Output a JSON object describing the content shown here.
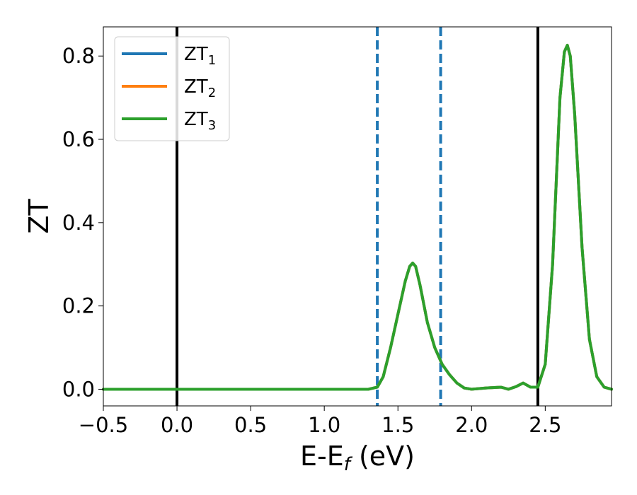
{
  "chart_data": {
    "type": "line",
    "title": "",
    "xlabel": {
      "main": "E-E",
      "sub": "f",
      "suffix": " (eV)"
    },
    "ylabel": "ZT",
    "xlim": [
      -0.5,
      2.95
    ],
    "ylim": [
      -0.04,
      0.87
    ],
    "xticks": [
      -0.5,
      0.0,
      0.5,
      1.0,
      1.5,
      2.0,
      2.5
    ],
    "xtick_labels": [
      "−0.5",
      "0.0",
      "0.5",
      "1.0",
      "1.5",
      "2.0",
      "2.5"
    ],
    "yticks": [
      0.0,
      0.2,
      0.4,
      0.6,
      0.8
    ],
    "ytick_labels": [
      "0.0",
      "0.2",
      "0.4",
      "0.6",
      "0.8"
    ],
    "grid": false,
    "legend_position": "top-left",
    "series": [
      {
        "name": "ZT",
        "name_sub": "1",
        "color": "#1f77b4",
        "x": [
          -0.5,
          1.3,
          1.36,
          1.4,
          1.45,
          1.5,
          1.55,
          1.58,
          1.6,
          1.62,
          1.65,
          1.7,
          1.75,
          1.8,
          1.85,
          1.9,
          1.95,
          2.0,
          2.1,
          2.2,
          2.25,
          2.3,
          2.35,
          2.4,
          2.45,
          2.5,
          2.55,
          2.6,
          2.63,
          2.65,
          2.67,
          2.7,
          2.75,
          2.8,
          2.85,
          2.9,
          2.95
        ],
        "y": [
          0.0,
          0.0,
          0.005,
          0.03,
          0.1,
          0.18,
          0.26,
          0.295,
          0.303,
          0.295,
          0.25,
          0.16,
          0.1,
          0.06,
          0.035,
          0.015,
          0.003,
          0.0,
          0.003,
          0.005,
          0.0,
          0.006,
          0.015,
          0.005,
          0.005,
          0.06,
          0.3,
          0.7,
          0.81,
          0.826,
          0.8,
          0.66,
          0.34,
          0.12,
          0.03,
          0.005,
          0.0
        ]
      },
      {
        "name": "ZT",
        "name_sub": "2",
        "color": "#ff7f0e",
        "x": [
          -0.5,
          1.3,
          1.36,
          1.4,
          1.45,
          1.5,
          1.55,
          1.58,
          1.6,
          1.62,
          1.65,
          1.7,
          1.75,
          1.8,
          1.85,
          1.9,
          1.95,
          2.0,
          2.1,
          2.2,
          2.25,
          2.3,
          2.35,
          2.4,
          2.45,
          2.5,
          2.55,
          2.6,
          2.63,
          2.65,
          2.67,
          2.7,
          2.75,
          2.8,
          2.85,
          2.9,
          2.95
        ],
        "y": [
          0.0,
          0.0,
          0.005,
          0.03,
          0.1,
          0.18,
          0.26,
          0.295,
          0.303,
          0.295,
          0.25,
          0.16,
          0.1,
          0.06,
          0.035,
          0.015,
          0.003,
          0.0,
          0.003,
          0.005,
          0.0,
          0.006,
          0.015,
          0.005,
          0.005,
          0.06,
          0.3,
          0.7,
          0.81,
          0.826,
          0.8,
          0.66,
          0.34,
          0.12,
          0.03,
          0.005,
          0.0
        ]
      },
      {
        "name": "ZT",
        "name_sub": "3",
        "color": "#2ca02c",
        "x": [
          -0.5,
          1.3,
          1.36,
          1.4,
          1.45,
          1.5,
          1.55,
          1.58,
          1.6,
          1.62,
          1.65,
          1.7,
          1.75,
          1.8,
          1.85,
          1.9,
          1.95,
          2.0,
          2.1,
          2.2,
          2.25,
          2.3,
          2.35,
          2.4,
          2.45,
          2.5,
          2.55,
          2.6,
          2.63,
          2.65,
          2.67,
          2.7,
          2.75,
          2.8,
          2.85,
          2.9,
          2.95
        ],
        "y": [
          0.0,
          0.0,
          0.005,
          0.03,
          0.1,
          0.18,
          0.26,
          0.295,
          0.303,
          0.295,
          0.25,
          0.16,
          0.1,
          0.06,
          0.035,
          0.015,
          0.003,
          0.0,
          0.003,
          0.005,
          0.0,
          0.006,
          0.015,
          0.005,
          0.005,
          0.06,
          0.3,
          0.7,
          0.81,
          0.826,
          0.8,
          0.66,
          0.34,
          0.12,
          0.03,
          0.005,
          0.0
        ]
      }
    ],
    "vertical_lines": [
      {
        "x": 0.0,
        "style": "solid",
        "color": "#000000"
      },
      {
        "x": 2.45,
        "style": "solid",
        "color": "#000000"
      },
      {
        "x": 1.36,
        "style": "dashed",
        "color": "#1f77b4"
      },
      {
        "x": 1.79,
        "style": "dashed",
        "color": "#1f77b4"
      }
    ]
  }
}
